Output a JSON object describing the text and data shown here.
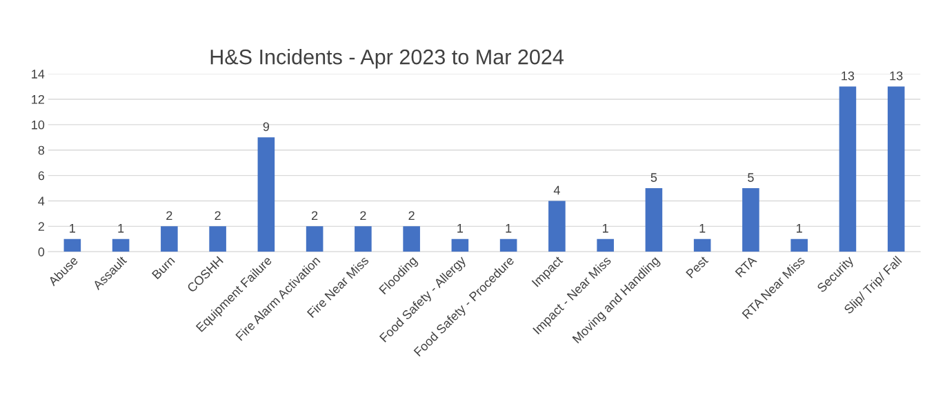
{
  "chart_data": {
    "type": "bar",
    "title": "H&S Incidents - Apr 2023 to Mar 2024",
    "categories": [
      "Abuse",
      "Assault",
      "Burn",
      "COSHH",
      "Equipment Failure",
      "Fire Alarm Activation",
      "Fire Near Miss",
      "Flooding",
      "Food Safety - Allergy",
      "Food Safety - Procedure",
      "Impact",
      "Impact - Near Miss",
      "Moving and Handling",
      "Pest",
      "RTA",
      "RTA Near Miss",
      "Security",
      "Slip/ Trip/ Fall"
    ],
    "values": [
      1,
      1,
      2,
      2,
      9,
      2,
      2,
      2,
      1,
      1,
      4,
      1,
      5,
      1,
      5,
      1,
      13,
      13
    ],
    "color": "#4472c4",
    "ylim": [
      0,
      14
    ],
    "yticks": [
      0,
      2,
      4,
      6,
      8,
      10,
      12,
      14
    ],
    "grid": "y",
    "data_labels": true,
    "legend": false
  }
}
